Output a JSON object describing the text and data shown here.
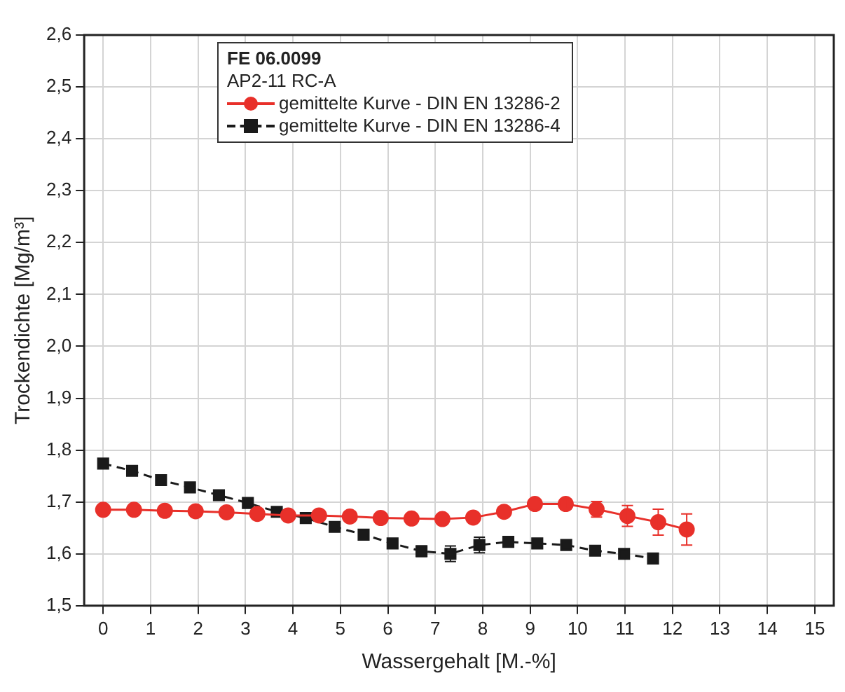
{
  "chart_data": {
    "type": "line",
    "xlabel": "Wassergehalt [M.-%]",
    "ylabel": "Trockendichte [Mg/m³]",
    "legend_title": "FE 06.0099",
    "annotations": [
      "AP2-11 RC-A"
    ],
    "legend": "top",
    "grid": true,
    "xlim": [
      -0.4,
      15.4
    ],
    "xticks": [
      0,
      1,
      2,
      3,
      4,
      5,
      6,
      7,
      8,
      9,
      10,
      11,
      12,
      13,
      14,
      15
    ],
    "ylim": [
      1.5,
      2.6
    ],
    "yticks": [
      {
        "value": 1.5,
        "label": "1,5"
      },
      {
        "value": 1.6,
        "label": "1,6"
      },
      {
        "value": 1.7,
        "label": "1,7"
      },
      {
        "value": 1.8,
        "label": "1,8"
      },
      {
        "value": 1.9,
        "label": "1,9"
      },
      {
        "value": 2.0,
        "label": "2,0"
      },
      {
        "value": 2.1,
        "label": "2,1"
      },
      {
        "value": 2.2,
        "label": "2,2"
      },
      {
        "value": 2.3,
        "label": "2,3"
      },
      {
        "value": 2.4,
        "label": "2,4"
      },
      {
        "value": 2.5,
        "label": "2,5"
      },
      {
        "value": 2.6,
        "label": "2,6"
      }
    ],
    "series": [
      {
        "name": "gemittelte Kurve - DIN EN 13286-2",
        "color": "#e8302a",
        "marker": "circle",
        "line_style": "solid",
        "x": [
          0,
          0.65,
          1.3,
          1.95,
          2.6,
          3.25,
          3.9,
          4.55,
          5.2,
          5.85,
          6.5,
          7.15,
          7.8,
          8.45,
          9.1,
          9.75,
          10.4,
          11.05,
          11.7,
          12.3
        ],
        "values": [
          1.685,
          1.685,
          1.683,
          1.682,
          1.68,
          1.677,
          1.674,
          1.674,
          1.672,
          1.669,
          1.668,
          1.667,
          1.67,
          1.681,
          1.696,
          1.696,
          1.686,
          1.673,
          1.661,
          1.647
        ],
        "errors": [
          null,
          null,
          null,
          null,
          null,
          null,
          null,
          null,
          null,
          null,
          null,
          null,
          null,
          null,
          null,
          0.01,
          0.015,
          0.02,
          0.025,
          0.03
        ]
      },
      {
        "name": "gemittelte Kurve - DIN EN 13286-4",
        "color": "#1a1a1a",
        "marker": "square",
        "line_style": "dashed",
        "x": [
          0,
          0.61,
          1.22,
          1.83,
          2.44,
          3.05,
          3.66,
          4.27,
          4.88,
          5.49,
          6.1,
          6.71,
          7.32,
          7.93,
          8.54,
          9.15,
          9.76,
          10.37,
          10.98,
          11.59
        ],
        "values": [
          1.774,
          1.76,
          1.742,
          1.728,
          1.713,
          1.698,
          1.681,
          1.669,
          1.652,
          1.637,
          1.62,
          1.605,
          1.6,
          1.617,
          1.623,
          1.62,
          1.617,
          1.606,
          1.6,
          1.591
        ],
        "errors": [
          null,
          null,
          null,
          null,
          null,
          null,
          null,
          null,
          null,
          null,
          null,
          0.01,
          0.015,
          0.015,
          null,
          null,
          null,
          null,
          null,
          null
        ]
      }
    ]
  }
}
